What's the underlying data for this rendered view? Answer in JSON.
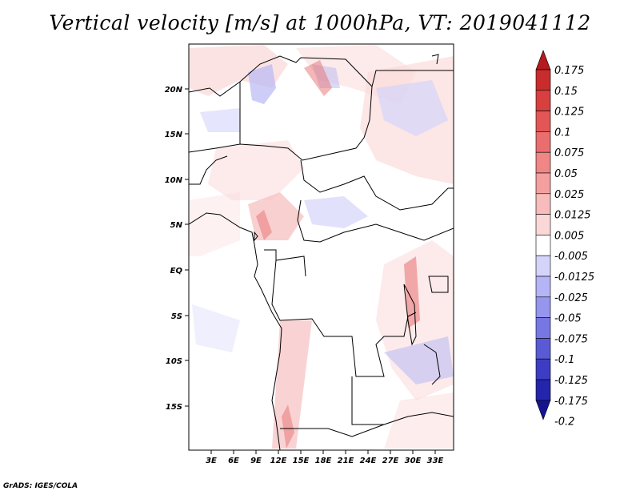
{
  "title": "Vertical velocity [m/s] at 1000hPa, VT: 2019041112",
  "footer": "GrADS: IGES/COLA",
  "map": {
    "lat_labels": [
      "20N",
      "15N",
      "10N",
      "5N",
      "EQ",
      "5S",
      "10S",
      "15S"
    ],
    "lon_labels": [
      "3E",
      "6E",
      "9E",
      "12E",
      "15E",
      "18E",
      "21E",
      "24E",
      "27E",
      "30E",
      "33E"
    ]
  },
  "colorbar": {
    "labels": [
      "0.175",
      "0.15",
      "0.125",
      "0.1",
      "0.075",
      "0.05",
      "0.025",
      "0.0125",
      "0.005",
      "-0.005",
      "-0.0125",
      "-0.025",
      "-0.05",
      "-0.075",
      "-0.1",
      "-0.125",
      "-0.175",
      "-0.2"
    ],
    "colors": [
      "#b41a1e",
      "#c92c2c",
      "#d84040",
      "#e35656",
      "#ea6e6e",
      "#f08686",
      "#f4a0a0",
      "#f8bcbc",
      "#fbd8d8",
      "#ffffff",
      "#d4d4fb",
      "#b4b4f6",
      "#9696ee",
      "#7777e4",
      "#5a5ad6",
      "#3d3dc4",
      "#2424ac",
      "#141492"
    ]
  }
}
